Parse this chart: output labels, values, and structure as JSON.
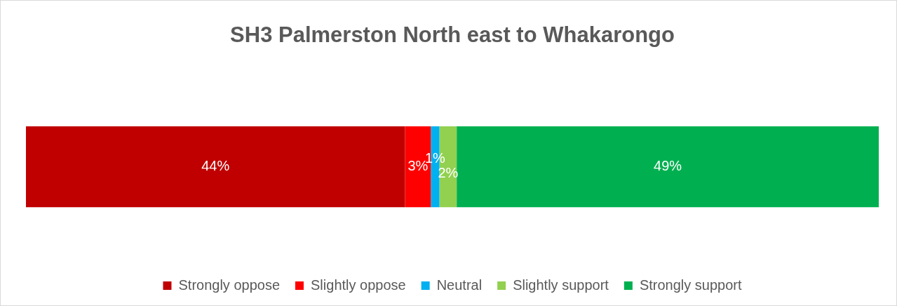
{
  "chart_data": {
    "type": "bar",
    "title": "SH3 Palmerston North east to Whakarongo",
    "orientation": "horizontal",
    "stacked": true,
    "legend": "bottom",
    "categories": [
      null
    ],
    "series": [
      {
        "name": "Strongly oppose",
        "color": "#c00000",
        "values": [
          44
        ],
        "value_labels": [
          "44%"
        ]
      },
      {
        "name": "Slightly oppose",
        "color": "#ff0000",
        "values": [
          3
        ],
        "value_labels": [
          "3%"
        ]
      },
      {
        "name": "Neutral",
        "color": "#00b0f0",
        "values": [
          1
        ],
        "value_labels": [
          "1%"
        ]
      },
      {
        "name": "Slightly support",
        "color": "#92d050",
        "values": [
          2
        ],
        "value_labels": [
          "2%"
        ]
      },
      {
        "name": "Strongly support",
        "color": "#00b050",
        "values": [
          49
        ],
        "value_labels": [
          "49%"
        ]
      }
    ]
  }
}
